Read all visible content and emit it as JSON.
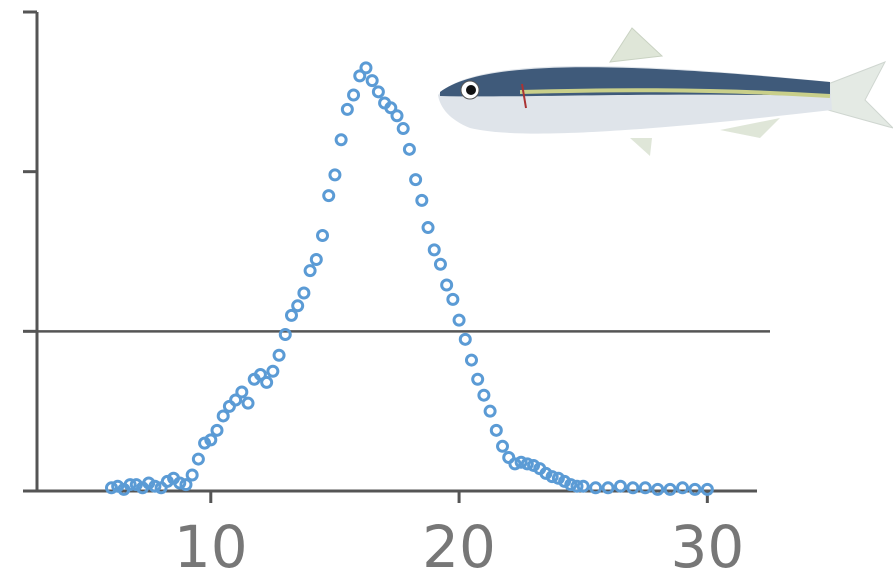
{
  "chart_data": {
    "type": "scatter",
    "x": [
      6,
      6.25,
      6.5,
      6.75,
      7,
      7.25,
      7.5,
      7.75,
      8,
      8.25,
      8.5,
      8.75,
      9,
      9.25,
      9.5,
      9.75,
      10,
      10.25,
      10.5,
      10.75,
      11,
      11.25,
      11.5,
      11.75,
      12,
      12.25,
      12.5,
      12.75,
      13,
      13.25,
      13.5,
      13.75,
      14,
      14.25,
      14.5,
      14.75,
      15,
      15.25,
      15.5,
      15.75,
      16,
      16.25,
      16.5,
      16.75,
      17,
      17.25,
      17.5,
      17.75,
      18,
      18.25,
      18.5,
      18.75,
      19,
      19.25,
      19.5,
      19.75,
      20,
      20.25,
      20.5,
      20.75,
      21,
      21.25,
      21.5,
      21.75,
      22,
      22.25,
      22.5,
      22.75,
      23,
      23.25,
      23.5,
      23.75,
      24,
      24.25,
      24.5,
      24.75,
      25,
      25.5,
      26,
      26.5,
      27,
      27.5,
      28,
      28.5,
      29,
      29.5,
      30
    ],
    "values": [
      0.02,
      0.03,
      0.01,
      0.04,
      0.04,
      0.02,
      0.05,
      0.03,
      0.02,
      0.06,
      0.08,
      0.05,
      0.04,
      0.1,
      0.2,
      0.3,
      0.32,
      0.38,
      0.47,
      0.53,
      0.57,
      0.62,
      0.55,
      0.7,
      0.73,
      0.68,
      0.75,
      0.85,
      0.98,
      1.1,
      1.16,
      1.24,
      1.38,
      1.45,
      1.6,
      1.85,
      1.98,
      2.2,
      2.39,
      2.48,
      2.6,
      2.65,
      2.57,
      2.5,
      2.43,
      2.4,
      2.35,
      2.27,
      2.14,
      1.95,
      1.82,
      1.65,
      1.51,
      1.42,
      1.29,
      1.2,
      1.07,
      0.95,
      0.82,
      0.7,
      0.6,
      0.5,
      0.38,
      0.28,
      0.21,
      0.17,
      0.18,
      0.17,
      0.16,
      0.14,
      0.11,
      0.09,
      0.08,
      0.06,
      0.04,
      0.03,
      0.03,
      0.02,
      0.02,
      0.03,
      0.02,
      0.02,
      0.01,
      0.01,
      0.02,
      0.01,
      0.01
    ],
    "color": "#5b9bd5",
    "xlim": [
      3,
      32
    ],
    "xticks": [
      10,
      20,
      30
    ],
    "ylim": [
      0,
      3
    ],
    "yticks": [
      0,
      1,
      2,
      3
    ],
    "hline": 1
  }
}
